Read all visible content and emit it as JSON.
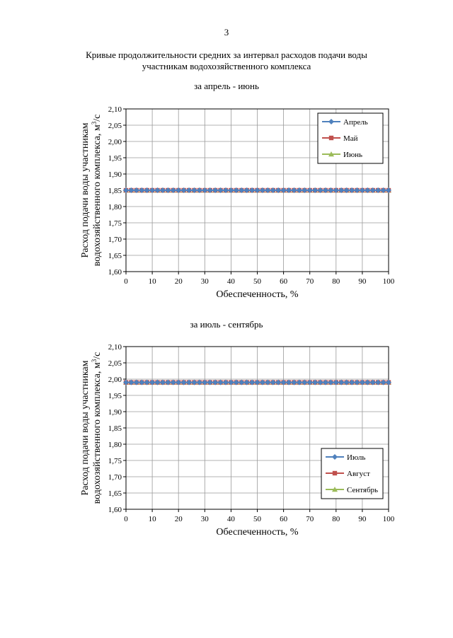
{
  "page": {
    "number": "3",
    "title_line1": "Кривые продолжительности средних за интервал расходов подачи воды",
    "title_line2": "участникам водохозяйственного комплекса"
  },
  "chart_data": [
    {
      "type": "line",
      "caption": "за апрель - июнь",
      "xlabel": "Обеспеченность, %",
      "ylabel_line1": "Расход подачи воды участникам",
      "ylabel_line2": "водохозяйственного комплекса, м",
      "ylabel_sup": "3",
      "ylabel_tail": "/с",
      "xlim": [
        0,
        100
      ],
      "ylim": [
        1.6,
        2.1
      ],
      "xticks": [
        "0",
        "10",
        "20",
        "30",
        "40",
        "50",
        "60",
        "70",
        "80",
        "90",
        "100"
      ],
      "yticks": [
        "1,60",
        "1,65",
        "1,70",
        "1,75",
        "1,80",
        "1,85",
        "1,90",
        "1,95",
        "2,00",
        "2,05",
        "2,10"
      ],
      "grid": true,
      "legend_position": "top-right",
      "series": [
        {
          "name": "Апрель",
          "value": 1.85,
          "color": "#4f81bd",
          "marker": "diamond"
        },
        {
          "name": "Май",
          "value": 1.85,
          "color": "#c0504d",
          "marker": "square"
        },
        {
          "name": "Июнь",
          "value": 1.85,
          "color": "#9bbb59",
          "marker": "triangle"
        }
      ]
    },
    {
      "type": "line",
      "caption": "за июль - сентябрь",
      "xlabel": "Обеспеченность, %",
      "ylabel_line1": "Расход подачи воды участникам",
      "ylabel_line2": "водохозяйственного комплекса, м",
      "ylabel_sup": "3",
      "ylabel_tail": "/с",
      "xlim": [
        0,
        100
      ],
      "ylim": [
        1.6,
        2.1
      ],
      "xticks": [
        "0",
        "10",
        "20",
        "30",
        "40",
        "50",
        "60",
        "70",
        "80",
        "90",
        "100"
      ],
      "yticks": [
        "1,60",
        "1,65",
        "1,70",
        "1,75",
        "1,80",
        "1,85",
        "1,90",
        "1,95",
        "2,00",
        "2,05",
        "2,10"
      ],
      "grid": true,
      "legend_position": "bottom-right",
      "series": [
        {
          "name": "Июль",
          "value": 1.99,
          "color": "#4f81bd",
          "marker": "diamond"
        },
        {
          "name": "Август",
          "value": 1.99,
          "color": "#c0504d",
          "marker": "square"
        },
        {
          "name": "Сентябрь",
          "value": 1.99,
          "color": "#9bbb59",
          "marker": "triangle"
        }
      ]
    }
  ]
}
